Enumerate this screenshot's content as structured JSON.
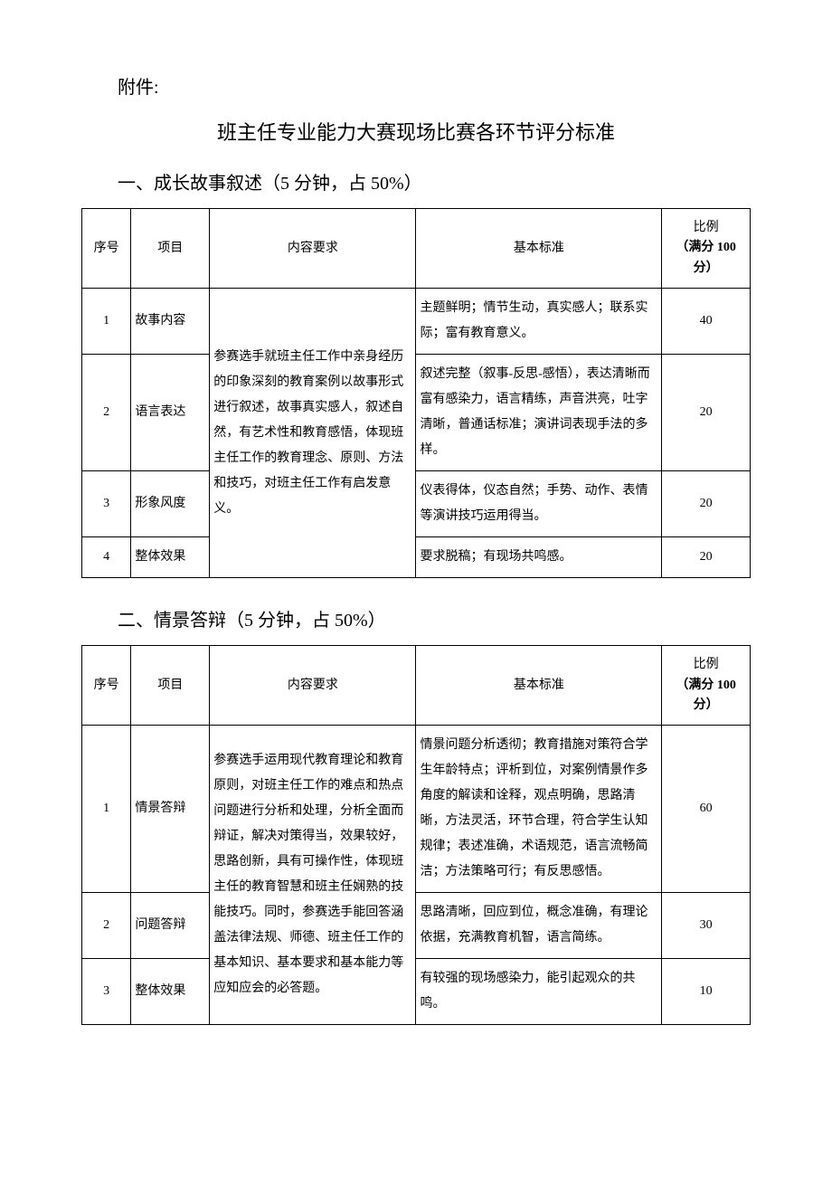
{
  "attachment_label": "附件:",
  "main_title": "班主任专业能力大赛现场比赛各环节评分标准",
  "section1": {
    "title": "一、成长故事叙述（5 分钟，占 50%）",
    "headers": {
      "num": "序号",
      "item": "项目",
      "req": "内容要求",
      "standard": "基本标准",
      "score_label": "比例",
      "score_sub": "（满分 100 分）"
    },
    "shared_req": "参赛选手就班主任工作中亲身经历的印象深刻的教育案例以故事形式进行叙述，故事真实感人，叙述自然，有艺术性和教育感悟，体现班主任工作的教育理念、原则、方法和技巧，对班主任工作有启发意义。",
    "rows": [
      {
        "num": "1",
        "item": "故事内容",
        "standard": "主题鲜明；情节生动，真实感人；联系实际；富有教育意义。",
        "score": "40"
      },
      {
        "num": "2",
        "item": "语言表达",
        "standard": "叙述完整（叙事-反思-感悟），表达清晰而富有感染力，语言精练，声音洪亮，吐字清晰，普通话标准；演讲词表现手法的多样。",
        "score": "20"
      },
      {
        "num": "3",
        "item": "形象风度",
        "standard": "仪表得体，仪态自然；手势、动作、表情等演讲技巧运用得当。",
        "score": "20"
      },
      {
        "num": "4",
        "item": "整体效果",
        "standard": "要求脱稿；有现场共鸣感。",
        "score": "20"
      }
    ]
  },
  "section2": {
    "title": "二、情景答辩（5 分钟，占 50%）",
    "headers": {
      "num": "序号",
      "item": "项目",
      "req": "内容要求",
      "standard": "基本标准",
      "score_label": "比例",
      "score_sub": "（满分 100 分）"
    },
    "shared_req": "参赛选手运用现代教育理论和教育原则，对班主任工作的难点和热点问题进行分析和处理，分析全面而辩证，解决对策得当，效果较好，思路创新，具有可操作性，体现班主任的教育智慧和班主任娴熟的技能技巧。同时，参赛选手能回答涵盖法律法规、师德、班主任工作的基本知识、基本要求和基本能力等应知应会的必答题。",
    "rows": [
      {
        "num": "1",
        "item": "情景答辩",
        "standard": "情景问题分析透彻；教育措施对策符合学生年龄特点；评析到位，对案例情景作多角度的解读和诠释，观点明确，思路清晰，方法灵活，环节合理，符合学生认知规律；表述准确，术语规范，语言流畅简洁；方法策略可行；有反思感悟。",
        "score": "60"
      },
      {
        "num": "2",
        "item": "问题答辩",
        "standard": "思路清晰，回应到位，概念准确，有理论依据，充满教育机智，语言简练。",
        "score": "30"
      },
      {
        "num": "3",
        "item": "整体效果",
        "standard": "有较强的现场感染力，能引起观众的共鸣。",
        "score": "10"
      }
    ]
  }
}
